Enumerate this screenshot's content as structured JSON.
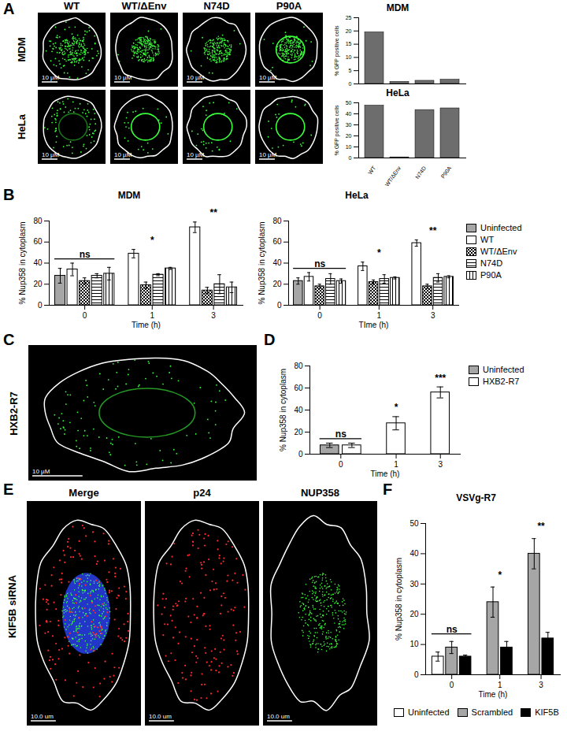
{
  "panel_labels": [
    "A",
    "B",
    "C",
    "D",
    "E",
    "F"
  ],
  "panel_a": {
    "columns": [
      "WT",
      "WT/ΔEnv",
      "N74D",
      "P90A"
    ],
    "rows": [
      "MDM",
      "HeLa"
    ],
    "scale_bar": "10 µM"
  },
  "panel_c": {
    "label": "HXB2-R7",
    "scale_bar": "10 µM"
  },
  "panel_e": {
    "row_label": "KIF5B siRNA",
    "columns": [
      "Merge",
      "p24",
      "NUP358"
    ],
    "scale_bar": "10.0 um"
  },
  "chart_data": [
    {
      "type": "bar",
      "title": "MDM",
      "ylabel": "% GFP positive cells",
      "categories": [
        "WT",
        "WT/ΔEnv",
        "N74D",
        "P90A"
      ],
      "values": [
        19.5,
        0.8,
        1.2,
        1.6
      ],
      "color": "#6d6d6d",
      "ylim": [
        0,
        25
      ],
      "yticks": [
        0,
        5,
        10,
        15,
        20,
        25
      ],
      "tick_labels": "y"
    },
    {
      "type": "bar",
      "title": "HeLa",
      "ylabel": "% GFP positive cells",
      "categories": [
        "WT",
        "WT/ΔEnv",
        "N74D",
        "P90A"
      ],
      "values": [
        47.5,
        0.6,
        43.5,
        45
      ],
      "color": "#6d6d6d",
      "ylim": [
        0,
        50
      ],
      "yticks": [
        0,
        10,
        20,
        30,
        40,
        50
      ]
    },
    {
      "type": "bar",
      "title": "MDM",
      "xlabel": "Time (h)",
      "ylabel": "% Nup358 in cytoplasm",
      "categories": [
        "0",
        "1",
        "3"
      ],
      "series": [
        {
          "name": "Uninfected",
          "color": "#a6a6a6",
          "values": [
            28,
            null,
            null
          ],
          "error": [
            7,
            null,
            null
          ]
        },
        {
          "name": "WT",
          "color": "#ffffff",
          "values": [
            34,
            49,
            74
          ],
          "error": [
            6,
            4,
            5
          ]
        },
        {
          "name": "WT/ΔEnv",
          "color": "#ffffff",
          "values": [
            23,
            19,
            14
          ],
          "error": [
            3,
            3,
            3
          ]
        },
        {
          "name": "N74D",
          "color": "#ffffff",
          "values": [
            28,
            29,
            20
          ],
          "error": [
            2,
            1,
            9
          ]
        },
        {
          "name": "P90A",
          "color": "#ffffff",
          "values": [
            30,
            35,
            17
          ],
          "error": [
            6,
            1,
            5
          ]
        }
      ],
      "ylim": [
        0,
        80
      ],
      "yticks": [
        0,
        20,
        40,
        60,
        80
      ],
      "annotations": [
        {
          "category": "0",
          "text": "ns"
        },
        {
          "category": "1",
          "text": "*"
        },
        {
          "category": "3",
          "text": "**"
        }
      ]
    },
    {
      "type": "bar",
      "title": "HeLa",
      "xlabel": "TIme (h)",
      "ylabel": "% Nup358 in cytoplasm",
      "categories": [
        "0",
        "1",
        "3"
      ],
      "series": [
        {
          "name": "Uninfected",
          "color": "#a6a6a6",
          "values": [
            23,
            null,
            null
          ],
          "error": [
            3,
            null,
            null
          ]
        },
        {
          "name": "WT",
          "color": "#ffffff",
          "values": [
            27,
            37,
            59
          ],
          "error": [
            4,
            4,
            3
          ]
        },
        {
          "name": "WT/ΔEnv",
          "color": "#ffffff",
          "values": [
            18,
            22,
            18
          ],
          "error": [
            2,
            2,
            2
          ]
        },
        {
          "name": "N74D",
          "color": "#ffffff",
          "values": [
            25,
            25,
            26
          ],
          "error": [
            5,
            4,
            4
          ]
        },
        {
          "name": "P90A",
          "color": "#ffffff",
          "values": [
            23,
            26,
            27
          ],
          "error": [
            2,
            1,
            1
          ]
        }
      ],
      "ylim": [
        0,
        80
      ],
      "yticks": [
        0,
        20,
        40,
        60,
        80
      ],
      "legend": "right",
      "annotations": [
        {
          "category": "0",
          "text": "ns"
        },
        {
          "category": "1",
          "text": "*"
        },
        {
          "category": "3",
          "text": "**"
        }
      ]
    },
    {
      "type": "bar",
      "xlabel": "Time (h)",
      "ylabel": "% Nup358 in cytoplasm",
      "categories": [
        "0",
        "1",
        "3"
      ],
      "series": [
        {
          "name": "Uninfected",
          "color": "#a6a6a6",
          "values": [
            8,
            null,
            null
          ],
          "error": [
            2,
            null,
            null
          ]
        },
        {
          "name": "HXB2-R7",
          "color": "#ffffff",
          "values": [
            8,
            28,
            56
          ],
          "error": [
            2,
            6,
            5
          ]
        }
      ],
      "ylim": [
        0,
        80
      ],
      "yticks": [
        0,
        20,
        40,
        60,
        80
      ],
      "legend": "right",
      "annotations": [
        {
          "category": "0",
          "text": "ns"
        },
        {
          "category": "1",
          "text": "*"
        },
        {
          "category": "3",
          "text": "***"
        }
      ]
    },
    {
      "type": "bar",
      "title": "VSVg-R7",
      "xlabel": "Time (h)",
      "ylabel": "% Nup358 in cytoplasm",
      "categories": [
        "0",
        "1",
        "3"
      ],
      "series": [
        {
          "name": "Uninfected",
          "color": "#ffffff",
          "values": [
            6,
            null,
            null
          ],
          "error": [
            1.5,
            null,
            null
          ]
        },
        {
          "name": "Scrambled",
          "color": "#a6a6a6",
          "values": [
            9,
            24,
            40
          ],
          "error": [
            2,
            5,
            5
          ]
        },
        {
          "name": "KIF5B",
          "color": "#000000",
          "values": [
            6,
            9,
            12
          ],
          "error": [
            0.5,
            2,
            2
          ]
        }
      ],
      "ylim": [
        0,
        50
      ],
      "yticks": [
        0,
        10,
        20,
        30,
        40,
        50
      ],
      "legend": "bottom",
      "annotations": [
        {
          "category": "0",
          "text": "ns"
        },
        {
          "category": "1",
          "text": "*"
        },
        {
          "category": "3",
          "text": "**"
        }
      ]
    }
  ]
}
